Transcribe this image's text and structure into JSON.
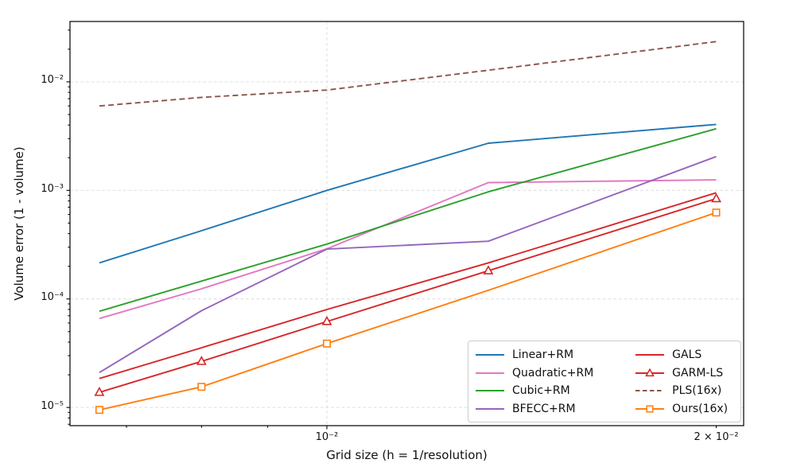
{
  "figure": {
    "xlabel": "Grid size (h = 1/resolution)",
    "ylabel": "Volume error (1 - volume)"
  },
  "chart_data": {
    "type": "line",
    "title": "",
    "xlabel": "Grid size (h = 1/resolution)",
    "ylabel": "Volume error (1 - volume)",
    "x_scale": "log",
    "y_scale": "log",
    "xlim": [
      0.00633,
      0.021
    ],
    "ylim": [
      6.8e-06,
      0.036
    ],
    "grid": "major-dashed",
    "legend_position": "lower right",
    "x": [
      0.00667,
      0.008,
      0.01,
      0.01333,
      0.02
    ],
    "series": [
      {
        "name": "Linear+RM",
        "color": "#1f77b4",
        "style": "solid",
        "marker": null,
        "values": [
          0.000215,
          0.000425,
          0.001,
          0.00272,
          0.00405
        ]
      },
      {
        "name": "Quadratic+RM",
        "color": "#e377c2",
        "style": "solid",
        "marker": null,
        "values": [
          6.6e-05,
          0.000124,
          0.00029,
          0.00118,
          0.00125
        ]
      },
      {
        "name": "Cubic+RM",
        "color": "#2ca02c",
        "style": "solid",
        "marker": null,
        "values": [
          7.7e-05,
          0.000146,
          0.00032,
          0.00097,
          0.0037
        ]
      },
      {
        "name": "BFECC+RM",
        "color": "#9467bd",
        "style": "solid",
        "marker": null,
        "values": [
          2.1e-05,
          7.8e-05,
          0.000288,
          0.00034,
          0.00205
        ]
      },
      {
        "name": "GALS",
        "color": "#d62728",
        "style": "solid",
        "marker": null,
        "values": [
          1.85e-05,
          3.55e-05,
          8e-05,
          0.000215,
          0.00095
        ]
      },
      {
        "name": "GARM-LS",
        "color": "#d62728",
        "style": "solid",
        "marker": "triangle",
        "values": [
          1.38e-05,
          2.66e-05,
          6.2e-05,
          0.000182,
          0.00084
        ]
      },
      {
        "name": "PLS(16x)",
        "color": "#8c564b",
        "style": "dashed",
        "marker": null,
        "values": [
          0.006,
          0.0072,
          0.0084,
          0.0128,
          0.0235
        ]
      },
      {
        "name": "Ours(16x)",
        "color": "#ff7f0e",
        "style": "solid",
        "marker": "square",
        "marker_indices": [
          0,
          1,
          2,
          4
        ],
        "values": [
          9.5e-06,
          1.55e-05,
          3.88e-05,
          0.00012,
          0.000625
        ]
      }
    ],
    "x_ticks": [
      {
        "value": 0.01,
        "label": "10⁻²",
        "major": true
      },
      {
        "value": 0.02,
        "label": "2 × 10⁻²",
        "major": false
      }
    ],
    "y_ticks": [
      {
        "value": 0.01,
        "label": "10⁻²"
      },
      {
        "value": 0.001,
        "label": "10⁻³"
      },
      {
        "value": 0.0001,
        "label": "10⁻⁴"
      },
      {
        "value": 1e-05,
        "label": "10⁻⁵"
      }
    ]
  },
  "legend": {
    "columns": 2,
    "items": [
      "Linear+RM",
      "Quadratic+RM",
      "Cubic+RM",
      "BFECC+RM",
      "GALS",
      "GARM-LS",
      "PLS(16x)",
      "Ours(16x)"
    ]
  }
}
